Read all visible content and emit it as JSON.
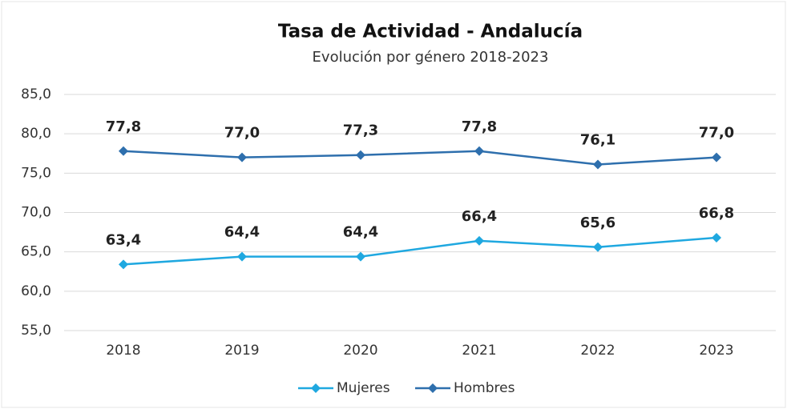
{
  "chart_data": {
    "type": "line",
    "title": "Tasa de Actividad - Andalucía",
    "subtitle": "Evolución por género 2018-2023",
    "categories": [
      "2018",
      "2019",
      "2020",
      "2021",
      "2022",
      "2023"
    ],
    "series": [
      {
        "name": "Mujeres",
        "color": "#1fa8e0",
        "values": [
          63.4,
          64.4,
          64.4,
          66.4,
          65.6,
          66.8
        ],
        "value_labels": [
          "63,4",
          "64,4",
          "64,4",
          "66,4",
          "65,6",
          "66,8"
        ]
      },
      {
        "name": "Hombres",
        "color": "#2e6fad",
        "values": [
          77.8,
          77.0,
          77.3,
          77.8,
          76.1,
          77.0
        ],
        "value_labels": [
          "77,8",
          "77,0",
          "77,3",
          "77,8",
          "76,1",
          "77,0"
        ]
      }
    ],
    "ylim": [
      55,
      85
    ],
    "yticks": [
      {
        "value": 55,
        "label": "55,0"
      },
      {
        "value": 60,
        "label": "60,0"
      },
      {
        "value": 65,
        "label": "65,0"
      },
      {
        "value": 70,
        "label": "70,0"
      },
      {
        "value": 75,
        "label": "75,0"
      },
      {
        "value": 80,
        "label": "80,0"
      },
      {
        "value": 85,
        "label": "85,0"
      }
    ],
    "grid": true,
    "legend": "bottom"
  }
}
